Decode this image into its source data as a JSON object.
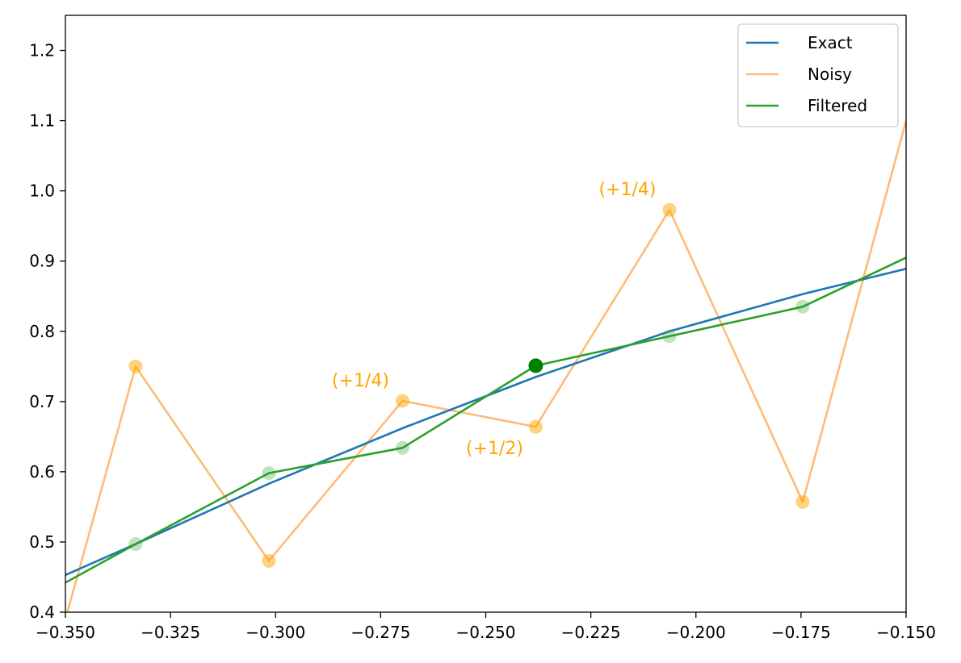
{
  "chart_data": {
    "type": "line",
    "title": "",
    "xlabel": "",
    "ylabel": "",
    "xlim": [
      -0.35,
      -0.15
    ],
    "ylim": [
      0.4,
      1.25
    ],
    "grid": false,
    "legend_position": "top-right",
    "x_ticks": [
      "−0.350",
      "−0.325",
      "−0.300",
      "−0.275",
      "−0.250",
      "−0.225",
      "−0.200",
      "−0.175",
      "−0.150"
    ],
    "y_ticks": [
      "0.4",
      "0.5",
      "0.6",
      "0.7",
      "0.8",
      "0.9",
      "1.0",
      "1.1",
      "1.2"
    ],
    "series": [
      {
        "name": "Exact",
        "color": "#1f77b4",
        "x": [
          -0.35,
          -0.3333,
          -0.3016,
          -0.2698,
          -0.2381,
          -0.2063,
          -0.1746,
          -0.15
        ],
        "y": [
          0.453,
          0.497,
          0.583,
          0.662,
          0.735,
          0.8,
          0.853,
          0.889
        ]
      },
      {
        "name": "Noisy",
        "color": "#ffbb78",
        "x": [
          -0.35,
          -0.3333,
          -0.3016,
          -0.2698,
          -0.2381,
          -0.2063,
          -0.1746,
          -0.15
        ],
        "y": [
          0.39,
          0.75,
          0.473,
          0.701,
          0.664,
          0.973,
          0.557,
          1.1
        ]
      },
      {
        "name": "Filtered",
        "color": "#2ca02c",
        "x": [
          -0.35,
          -0.3333,
          -0.3016,
          -0.2698,
          -0.2381,
          -0.2063,
          -0.1746,
          -0.15
        ],
        "y": [
          0.442,
          0.497,
          0.598,
          0.634,
          0.751,
          0.793,
          0.835,
          0.905
        ]
      }
    ],
    "noisy_markers": {
      "color": "#ffa500",
      "x": [
        -0.3333,
        -0.3016,
        -0.2698,
        -0.2381,
        -0.2063,
        -0.1746
      ],
      "y": [
        0.75,
        0.473,
        0.701,
        0.664,
        0.973,
        0.557
      ]
    },
    "filtered_markers": {
      "color": "#2ca02c",
      "x": [
        -0.3333,
        -0.3016,
        -0.2698,
        -0.2063,
        -0.1746
      ],
      "y": [
        0.497,
        0.598,
        0.634,
        0.793,
        0.835
      ]
    },
    "highlight_point": {
      "color": "#008000",
      "x": -0.2381,
      "y": 0.751
    },
    "annotations": [
      {
        "text": "(+1/4)",
        "x": -0.2698,
        "y": 0.701,
        "anchor": "above-left"
      },
      {
        "text": "(+1/2)",
        "x": -0.2381,
        "y": 0.664,
        "anchor": "below-left"
      },
      {
        "text": "(+1/4)",
        "x": -0.2063,
        "y": 0.973,
        "anchor": "above-left"
      }
    ]
  }
}
